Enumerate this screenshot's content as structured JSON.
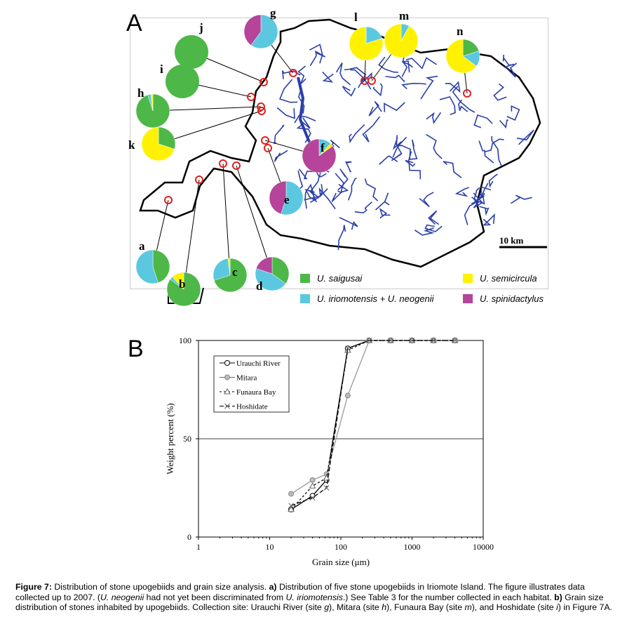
{
  "panel_a": {
    "letter": "A",
    "scale_label": "10 km",
    "colors": {
      "saigusai": "#4db848",
      "semicircula": "#fff200",
      "iriomotensis": "#5bc8e0",
      "spinidactylus": "#b5449a",
      "site_marker": "#e02020",
      "river": "#2b3fa8"
    },
    "legend": [
      {
        "key": "saigusai",
        "label": "U. saigusai"
      },
      {
        "key": "semicircula",
        "label": "U. semicircula"
      },
      {
        "key": "iriomotensis",
        "label": "U. iriomotensis + U. neogenii"
      },
      {
        "key": "spinidactylus",
        "label": "U. spinidactylus"
      }
    ],
    "sites": [
      {
        "label": "a",
        "composition": {
          "saigusai": 45,
          "iriomotensis": 55
        }
      },
      {
        "label": "b",
        "composition": {
          "saigusai": 85,
          "semicircula": 12,
          "iriomotensis": 3
        }
      },
      {
        "label": "c",
        "composition": {
          "saigusai": 70,
          "semicircula": 2,
          "iriomotensis": 28
        }
      },
      {
        "label": "d",
        "composition": {
          "saigusai": 35,
          "spinidactylus": 20,
          "iriomotensis": 45
        }
      },
      {
        "label": "e",
        "composition": {
          "spinidactylus": 45,
          "iriomotensis": 55
        }
      },
      {
        "label": "f",
        "composition": {
          "spinidactylus": 85,
          "semicircula": 3,
          "iriomotensis": 12
        }
      },
      {
        "label": "g",
        "composition": {
          "spinidactylus": 40,
          "iriomotensis": 60
        }
      },
      {
        "label": "h",
        "composition": {
          "saigusai": 95,
          "semicircula": 2,
          "iriomotensis": 3
        }
      },
      {
        "label": "i",
        "composition": {
          "saigusai": 100
        }
      },
      {
        "label": "j",
        "composition": {
          "saigusai": 100
        }
      },
      {
        "label": "k",
        "composition": {
          "saigusai": 30,
          "semicircula": 70
        }
      },
      {
        "label": "l",
        "composition": {
          "semicircula": 80,
          "iriomotensis": 20
        }
      },
      {
        "label": "m",
        "composition": {
          "semicircula": 92,
          "iriomotensis": 8
        }
      },
      {
        "label": "n",
        "composition": {
          "semicircula": 65,
          "saigusai": 20,
          "iriomotensis": 15
        }
      }
    ]
  },
  "panel_b": {
    "letter": "B"
  },
  "chart_data": {
    "type": "line",
    "xlabel": "Grain size (μm)",
    "ylabel": "Weight percent (%)",
    "xscale": "log",
    "xlim": [
      1,
      10000
    ],
    "ylim": [
      0,
      100
    ],
    "xticks": [
      "1",
      "10",
      "100",
      "1000",
      "10000"
    ],
    "yticks": [
      "0",
      "50",
      "100"
    ],
    "gridlines_y": [
      50
    ],
    "legend_position": "top-left",
    "x": [
      20,
      40,
      63,
      125,
      250,
      500,
      1000,
      2000,
      4000
    ],
    "series": [
      {
        "name": "Urauchi River",
        "marker": "open-circle",
        "dash": "solid",
        "color": "#000000",
        "values": [
          14,
          21,
          29,
          96,
          100,
          100,
          100,
          100,
          100
        ]
      },
      {
        "name": "Mitara",
        "marker": "filled-circle",
        "dash": "solid",
        "color": "#999999",
        "values": [
          22,
          29,
          32,
          72,
          100,
          100,
          100,
          100,
          100
        ]
      },
      {
        "name": "Funaura Bay",
        "marker": "triangle",
        "dash": "dashed",
        "color": "#000000",
        "values": [
          14,
          26,
          30,
          95,
          100,
          100,
          100,
          100,
          100
        ]
      },
      {
        "name": "Hoshidate",
        "marker": "cross",
        "dash": "longdash",
        "color": "#000000",
        "values": [
          16,
          20,
          25,
          96,
          100,
          100,
          100,
          100,
          100
        ]
      }
    ]
  },
  "caption": {
    "fig_label": "Figure 7:",
    "t1": " Distribution of stone upogebiids and grain size analysis. ",
    "a_label": "a)",
    "t2": " Distribution of five stone upogebiids in Iriomote Island. The figure illustrates data collected up to 2007. (",
    "i1": "U. neogenii",
    "t3": " had not yet been discriminated from ",
    "i2": "U. iriomotensis",
    "t4": ".) See Table 3 for the number collected in each habitat. ",
    "b_label": "b)",
    "t5": " Grain size distribution of stones inhabited by upogebiids. Collection site: Urauchi River (site ",
    "s1": "g",
    "t6": "), Mitara (site ",
    "s2": "h",
    "t7": "), Funaura Bay (site ",
    "s3": "m",
    "t8": "), and Hoshidate (site ",
    "s4": "i",
    "t9": ") in Figure 7A."
  }
}
